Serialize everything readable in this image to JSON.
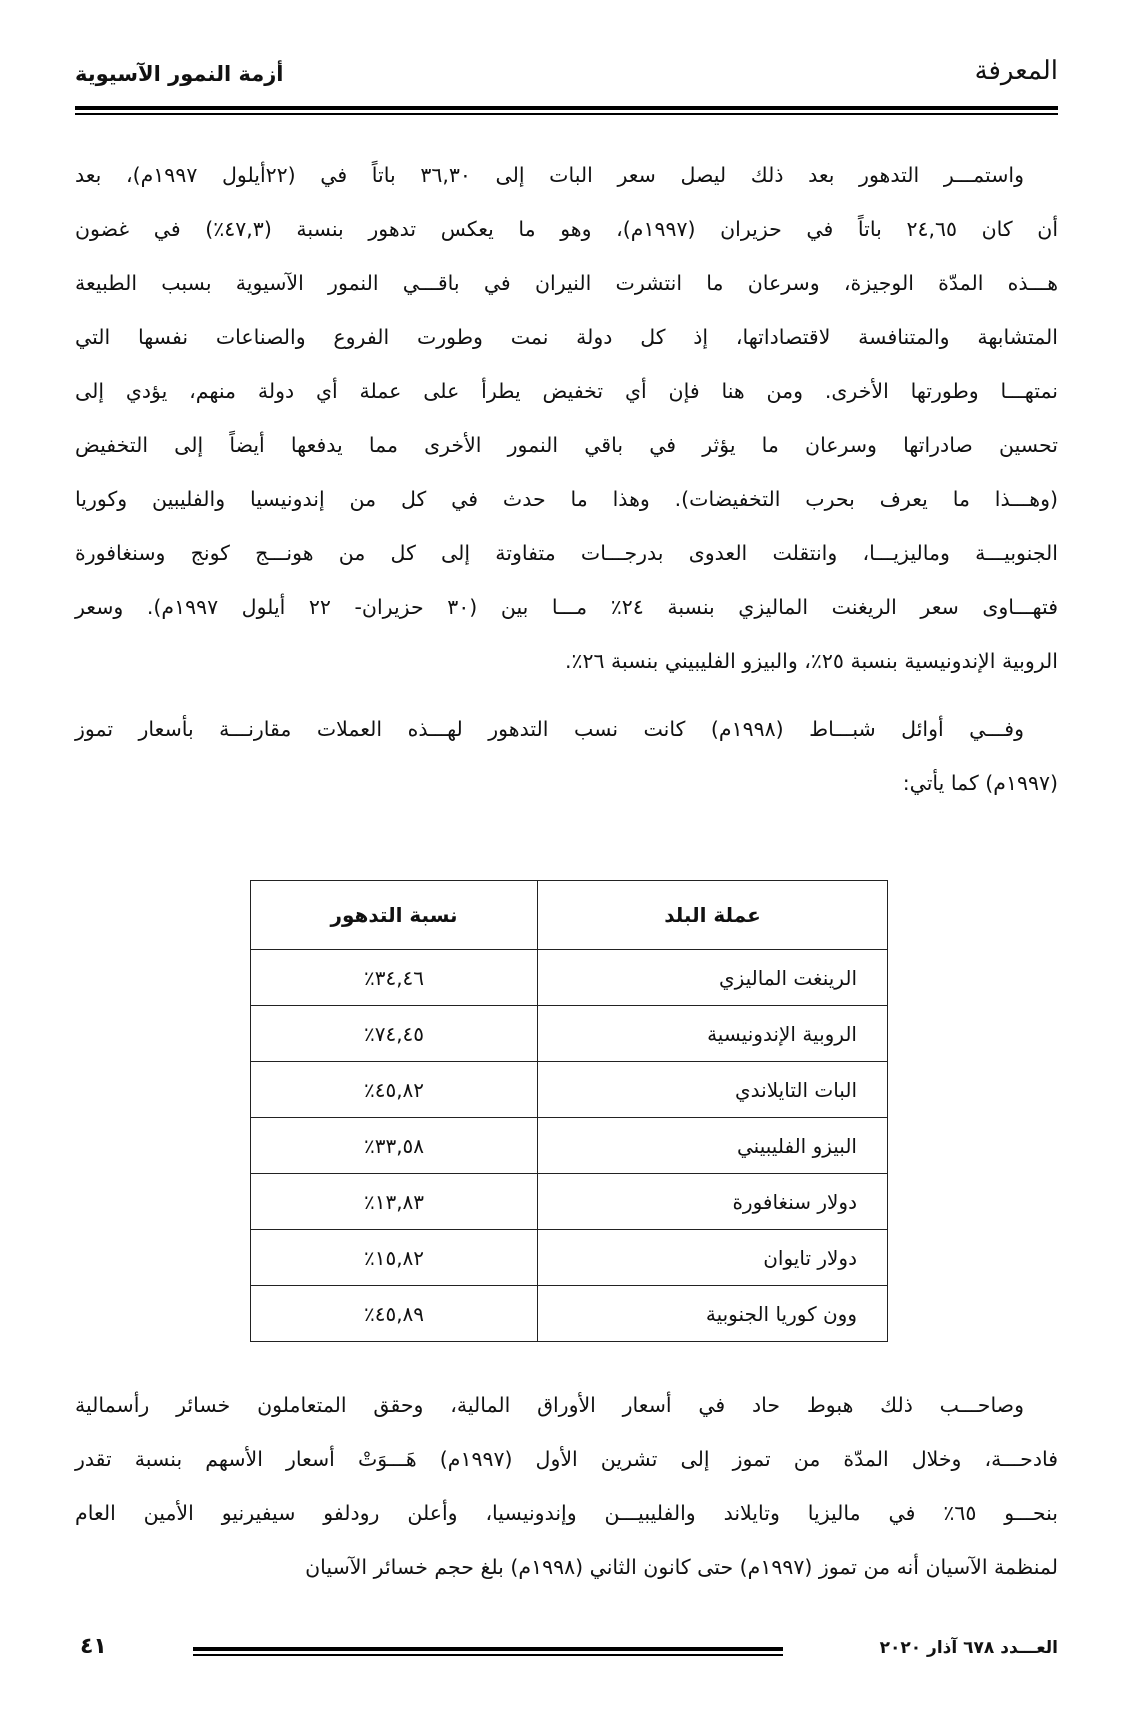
{
  "header": {
    "logo_text": "المعرفة",
    "article_title": "أزمة النمور الآسيوية"
  },
  "paragraphs": [
    {
      "lines": [
        "واستمـــر التدهور بعد ذلك ليصل سعر البات إلى ٣٦,٣٠ باتاً في (٢٢أيلول ١٩٩٧م)، بعد",
        "أن كان ٢٤,٦٥ باتاً في حزيران (١٩٩٧م)، وهو ما يعكس تدهور بنسبة (٤٧,٣٪) في غضون",
        "هـــذه المدّة الوجيزة، وسرعان ما انتشرت النيران في باقـــي النمور الآسيوية بسبب الطبيعة",
        "المتشابهة والمتنافسة لاقتصاداتها، إذ كل دولة نمت وطورت الفروع والصناعات نفسها التي",
        "نمتهـــا وطورتها الأخرى. ومن هنا فإن أي تخفيض يطرأ على عملة أي دولة منهم، يؤدي إلى",
        "تحسين صادراتها وسرعان ما يؤثر في باقي النمور الأخرى مما يدفعها أيضاً إلى التخفيض",
        "(وهـــذا ما يعرف بحرب التخفيضات). وهذا ما حدث في كل من إندونيسيا والفليبين وكوريا",
        "الجنوبيـــة وماليزيـــا، وانتقلت العدوى بدرجـــات متفاوتة إلى كل من هونـــج كونج وسنغافورة",
        "فتهـــاوى سعر الريغنت الماليزي بنسبة ٢٤٪ مـــا بين (٣٠ حزيران- ٢٢ أيلول ١٩٩٧م). وسعر",
        "الروبية الإندونيسية بنسبة ٢٥٪، والبيزو الفليبيني بنسبة ٢٦٪."
      ]
    },
    {
      "lines": [
        "وفـــي أوائل شبـــاط (١٩٩٨م) كانت نسب التدهور لهـــذه العملات مقارنـــة بأسعار تموز",
        "(١٩٩٧م) كما يأتي:"
      ]
    },
    {
      "lines": [
        "وصاحـــب ذلك هبوط حاد في أسعار الأوراق المالية، وحقق المتعاملون خسائر رأسمالية",
        "فادحـــة، وخلال المدّة من تموز إلى تشرين الأول (١٩٩٧م) هَـــوَتْ أسعار الأسهم بنسبة تقدر",
        "بنحـــو ٦٥٪ في ماليزيا وتايلاند والفليبيـــن وإندونيسيا، وأعلن رودلفو سيفيرنيو الأمين العام",
        "لمنظمة الآسيان أنه من تموز (١٩٩٧م) حتى كانون الثاني (١٩٩٨م) بلغ حجم خسائر الآسيان"
      ]
    }
  ],
  "table": {
    "headers": [
      "عملة البلد",
      "نسبة التدهور"
    ],
    "rows": [
      [
        "الرينغت الماليزي",
        "٣٤,٤٦٪"
      ],
      [
        "الروبية الإندونيسية",
        "٧٤,٤٥٪"
      ],
      [
        "البات التايلاندي",
        "٤٥,٨٢٪"
      ],
      [
        "البيزو الفليبيني",
        "٣٣,٥٨٪"
      ],
      [
        "دولار سنغافورة",
        "١٣,٨٣٪"
      ],
      [
        "دولار تايوان",
        "١٥,٨٢٪"
      ],
      [
        "وون كوريا الجنوبية",
        "٤٥,٨٩٪"
      ]
    ]
  },
  "footer": {
    "issue": "العـــدد ٦٧٨ آذار ٢٠٢٠",
    "page_number": "٤١"
  }
}
